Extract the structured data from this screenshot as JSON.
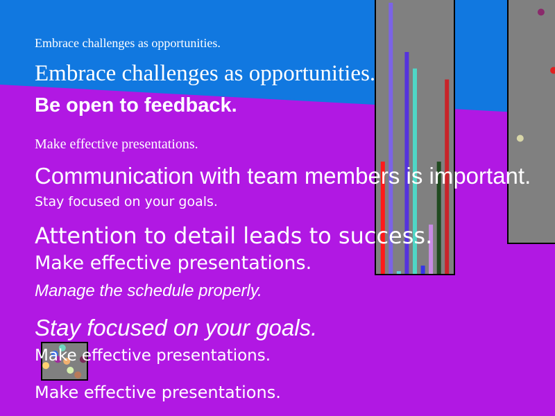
{
  "background": {
    "top_color": "#1178e0",
    "bottom_color": "#b118e3"
  },
  "lines": [
    {
      "text": "Embrace challenges as opportunities."
    },
    {
      "text": "Embrace challenges as opportunities."
    },
    {
      "text": "Be open to feedback."
    },
    {
      "text": "Make effective presentations."
    },
    {
      "text": "Communication with team members is important."
    },
    {
      "text": "Stay focused on your goals."
    },
    {
      "text": "Attention to detail leads to success."
    },
    {
      "text": "Make effective presentations."
    },
    {
      "text": "Manage the schedule properly."
    },
    {
      "text": "Stay focused on your goals."
    },
    {
      "text": "Make effective presentations."
    },
    {
      "text": "Make effective presentations."
    }
  ],
  "chart_data": [
    {
      "type": "bar",
      "ylim": [
        0,
        100
      ],
      "values": [
        41,
        99,
        1,
        81,
        75,
        3,
        18,
        41,
        71
      ],
      "colors": [
        "#ff1a1a",
        "#7b63e6",
        "#5fd3e0",
        "#5533dd",
        "#4fd6c6",
        "#3535e8",
        "#c98be6",
        "#1f4a1f",
        "#c8242a"
      ]
    },
    {
      "type": "scatter",
      "xlim": [
        0,
        1
      ],
      "ylim": [
        0,
        1
      ],
      "points": [
        {
          "x": 0.67,
          "y": 0.95,
          "color": "#8a2a6b"
        },
        {
          "x": 0.93,
          "y": 0.71,
          "color": "#e02020"
        },
        {
          "x": 0.24,
          "y": 0.43,
          "color": "#d8d6a8"
        }
      ]
    },
    {
      "type": "scatter",
      "xlim": [
        0,
        1
      ],
      "ylim": [
        0,
        1
      ],
      "points": [
        {
          "x": 0.45,
          "y": 0.87,
          "color": "#6fd6c0"
        },
        {
          "x": 0.28,
          "y": 0.7,
          "color": "#3a6be0"
        },
        {
          "x": 0.55,
          "y": 0.5,
          "color": "#f0b070"
        },
        {
          "x": 0.92,
          "y": 0.55,
          "color": "#7a2a5a"
        },
        {
          "x": 0.08,
          "y": 0.38,
          "color": "#ffd070"
        },
        {
          "x": 0.63,
          "y": 0.25,
          "color": "#d8f0b0"
        },
        {
          "x": 0.8,
          "y": 0.12,
          "color": "#b87a5a"
        },
        {
          "x": 0.35,
          "y": 0.55,
          "color": "#a02aa0"
        }
      ]
    }
  ]
}
